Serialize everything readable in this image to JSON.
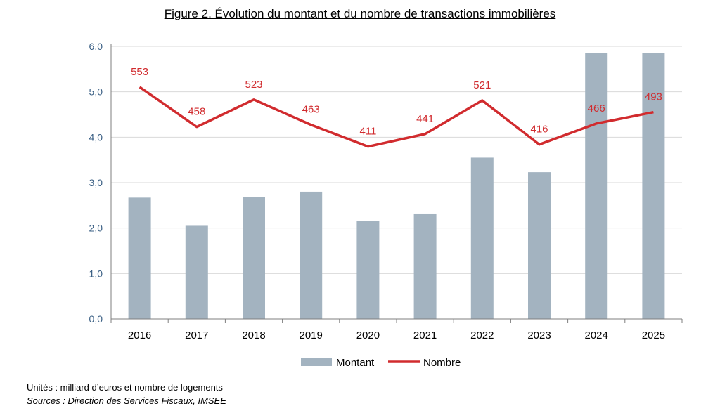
{
  "chart_data": {
    "type": "bar+line",
    "title": "Figure 2. Évolution du montant et du nombre de transactions immobilières",
    "categories": [
      "2016",
      "2017",
      "2018",
      "2019",
      "2020",
      "2021",
      "2022",
      "2023",
      "2024",
      "2025"
    ],
    "y_ticks": [
      "0,0",
      "1,0",
      "2,0",
      "3,0",
      "4,0",
      "5,0",
      "6,0"
    ],
    "ylim": [
      0,
      6
    ],
    "grid": true,
    "legend_position": "bottom-center",
    "series": [
      {
        "name": "Montant",
        "kind": "bar",
        "color": "#a3b3c0",
        "values": [
          2.67,
          2.05,
          2.69,
          2.8,
          2.16,
          2.32,
          3.55,
          3.23,
          5.85,
          5.85
        ]
      },
      {
        "name": "Nombre",
        "kind": "line",
        "color": "#d12b2e",
        "values": [
          553,
          458,
          523,
          463,
          411,
          441,
          521,
          416,
          466,
          493
        ],
        "labels": [
          "553",
          "458",
          "523",
          "463",
          "411",
          "441",
          "521",
          "416",
          "466",
          "493"
        ]
      }
    ]
  },
  "notes": {
    "units": "Unités : milliard d’euros et nombre de logements",
    "sources": "Sources : Direction des Services Fiscaux, IMSEE"
  }
}
